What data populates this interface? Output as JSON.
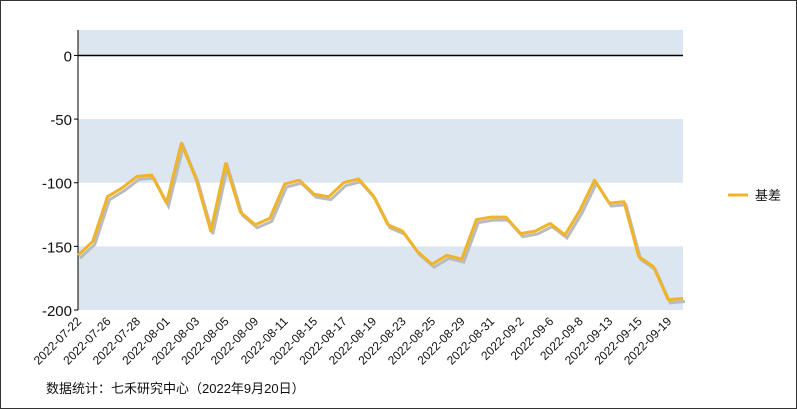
{
  "chart_data": {
    "type": "line",
    "categories": [
      "2022-07-22",
      null,
      "2022-07-26",
      null,
      "2022-07-28",
      null,
      "2022-08-01",
      null,
      "2022-08-03",
      null,
      "2022-08-05",
      null,
      "2022-08-09",
      null,
      "2022-08-11",
      null,
      "2022-08-15",
      null,
      "2022-08-17",
      null,
      "2022-08-19",
      null,
      "2022-08-23",
      null,
      "2022-08-25",
      null,
      "2022-08-29",
      null,
      "2022-08-31",
      null,
      "2022-09-2",
      null,
      "2022-09-6",
      null,
      "2022-09-8",
      null,
      "2022-09-13",
      null,
      "2022-09-15",
      null,
      "2022-09-19",
      null
    ],
    "series": [
      {
        "name": "基差",
        "color": "#f0b429",
        "values": [
          -157,
          -146,
          -111,
          -104,
          -95,
          -94,
          -116,
          -69,
          -97,
          -138,
          -85,
          -123,
          -133,
          -128,
          -101,
          -98,
          -109,
          -111,
          -100,
          -97,
          -110,
          -133,
          -138,
          -154,
          -164,
          -157,
          -160,
          -129,
          -127,
          -127,
          -140,
          -138,
          -132,
          -141,
          -122,
          -98,
          -116,
          -115,
          -158,
          -166,
          -192,
          -191
        ]
      }
    ],
    "ylim": [
      -200,
      20
    ],
    "yticks": [
      -200,
      -150,
      -100,
      -50,
      0
    ],
    "legend": "right",
    "source": "数据统计：七禾研究中心（2022年9月20日）"
  }
}
